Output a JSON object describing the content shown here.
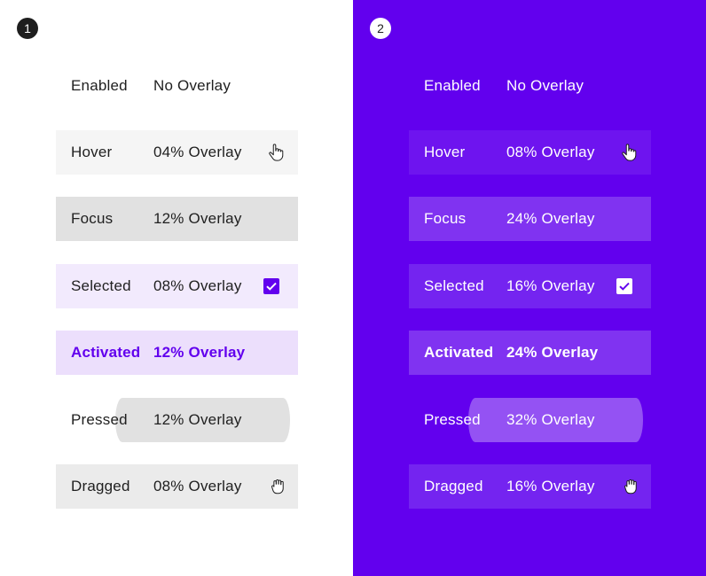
{
  "colors": {
    "primary": "#6200ee",
    "light_background": "#ffffff",
    "text_dark": "#1f1f1f",
    "text_light": "#ffffff"
  },
  "panels": [
    {
      "badge": "1",
      "theme": "light",
      "rows": [
        {
          "state": "Enabled",
          "overlay": "No Overlay",
          "indicator": "none"
        },
        {
          "state": "Hover",
          "overlay": "04% Overlay",
          "indicator": "pointer-hand-icon"
        },
        {
          "state": "Focus",
          "overlay": "12% Overlay",
          "indicator": "none"
        },
        {
          "state": "Selected",
          "overlay": "08% Overlay",
          "indicator": "checkbox-checked-icon"
        },
        {
          "state": "Activated",
          "overlay": "12% Overlay",
          "indicator": "none"
        },
        {
          "state": "Pressed",
          "overlay": "12% Overlay",
          "indicator": "none"
        },
        {
          "state": "Dragged",
          "overlay": "08% Overlay",
          "indicator": "grab-hand-icon"
        }
      ]
    },
    {
      "badge": "2",
      "theme": "dark",
      "rows": [
        {
          "state": "Enabled",
          "overlay": "No Overlay",
          "indicator": "none"
        },
        {
          "state": "Hover",
          "overlay": "08% Overlay",
          "indicator": "pointer-hand-icon"
        },
        {
          "state": "Focus",
          "overlay": "24% Overlay",
          "indicator": "none"
        },
        {
          "state": "Selected",
          "overlay": "16% Overlay",
          "indicator": "checkbox-checked-icon"
        },
        {
          "state": "Activated",
          "overlay": "24% Overlay",
          "indicator": "none"
        },
        {
          "state": "Pressed",
          "overlay": "32% Overlay",
          "indicator": "none"
        },
        {
          "state": "Dragged",
          "overlay": "16% Overlay",
          "indicator": "grab-hand-icon"
        }
      ]
    }
  ]
}
